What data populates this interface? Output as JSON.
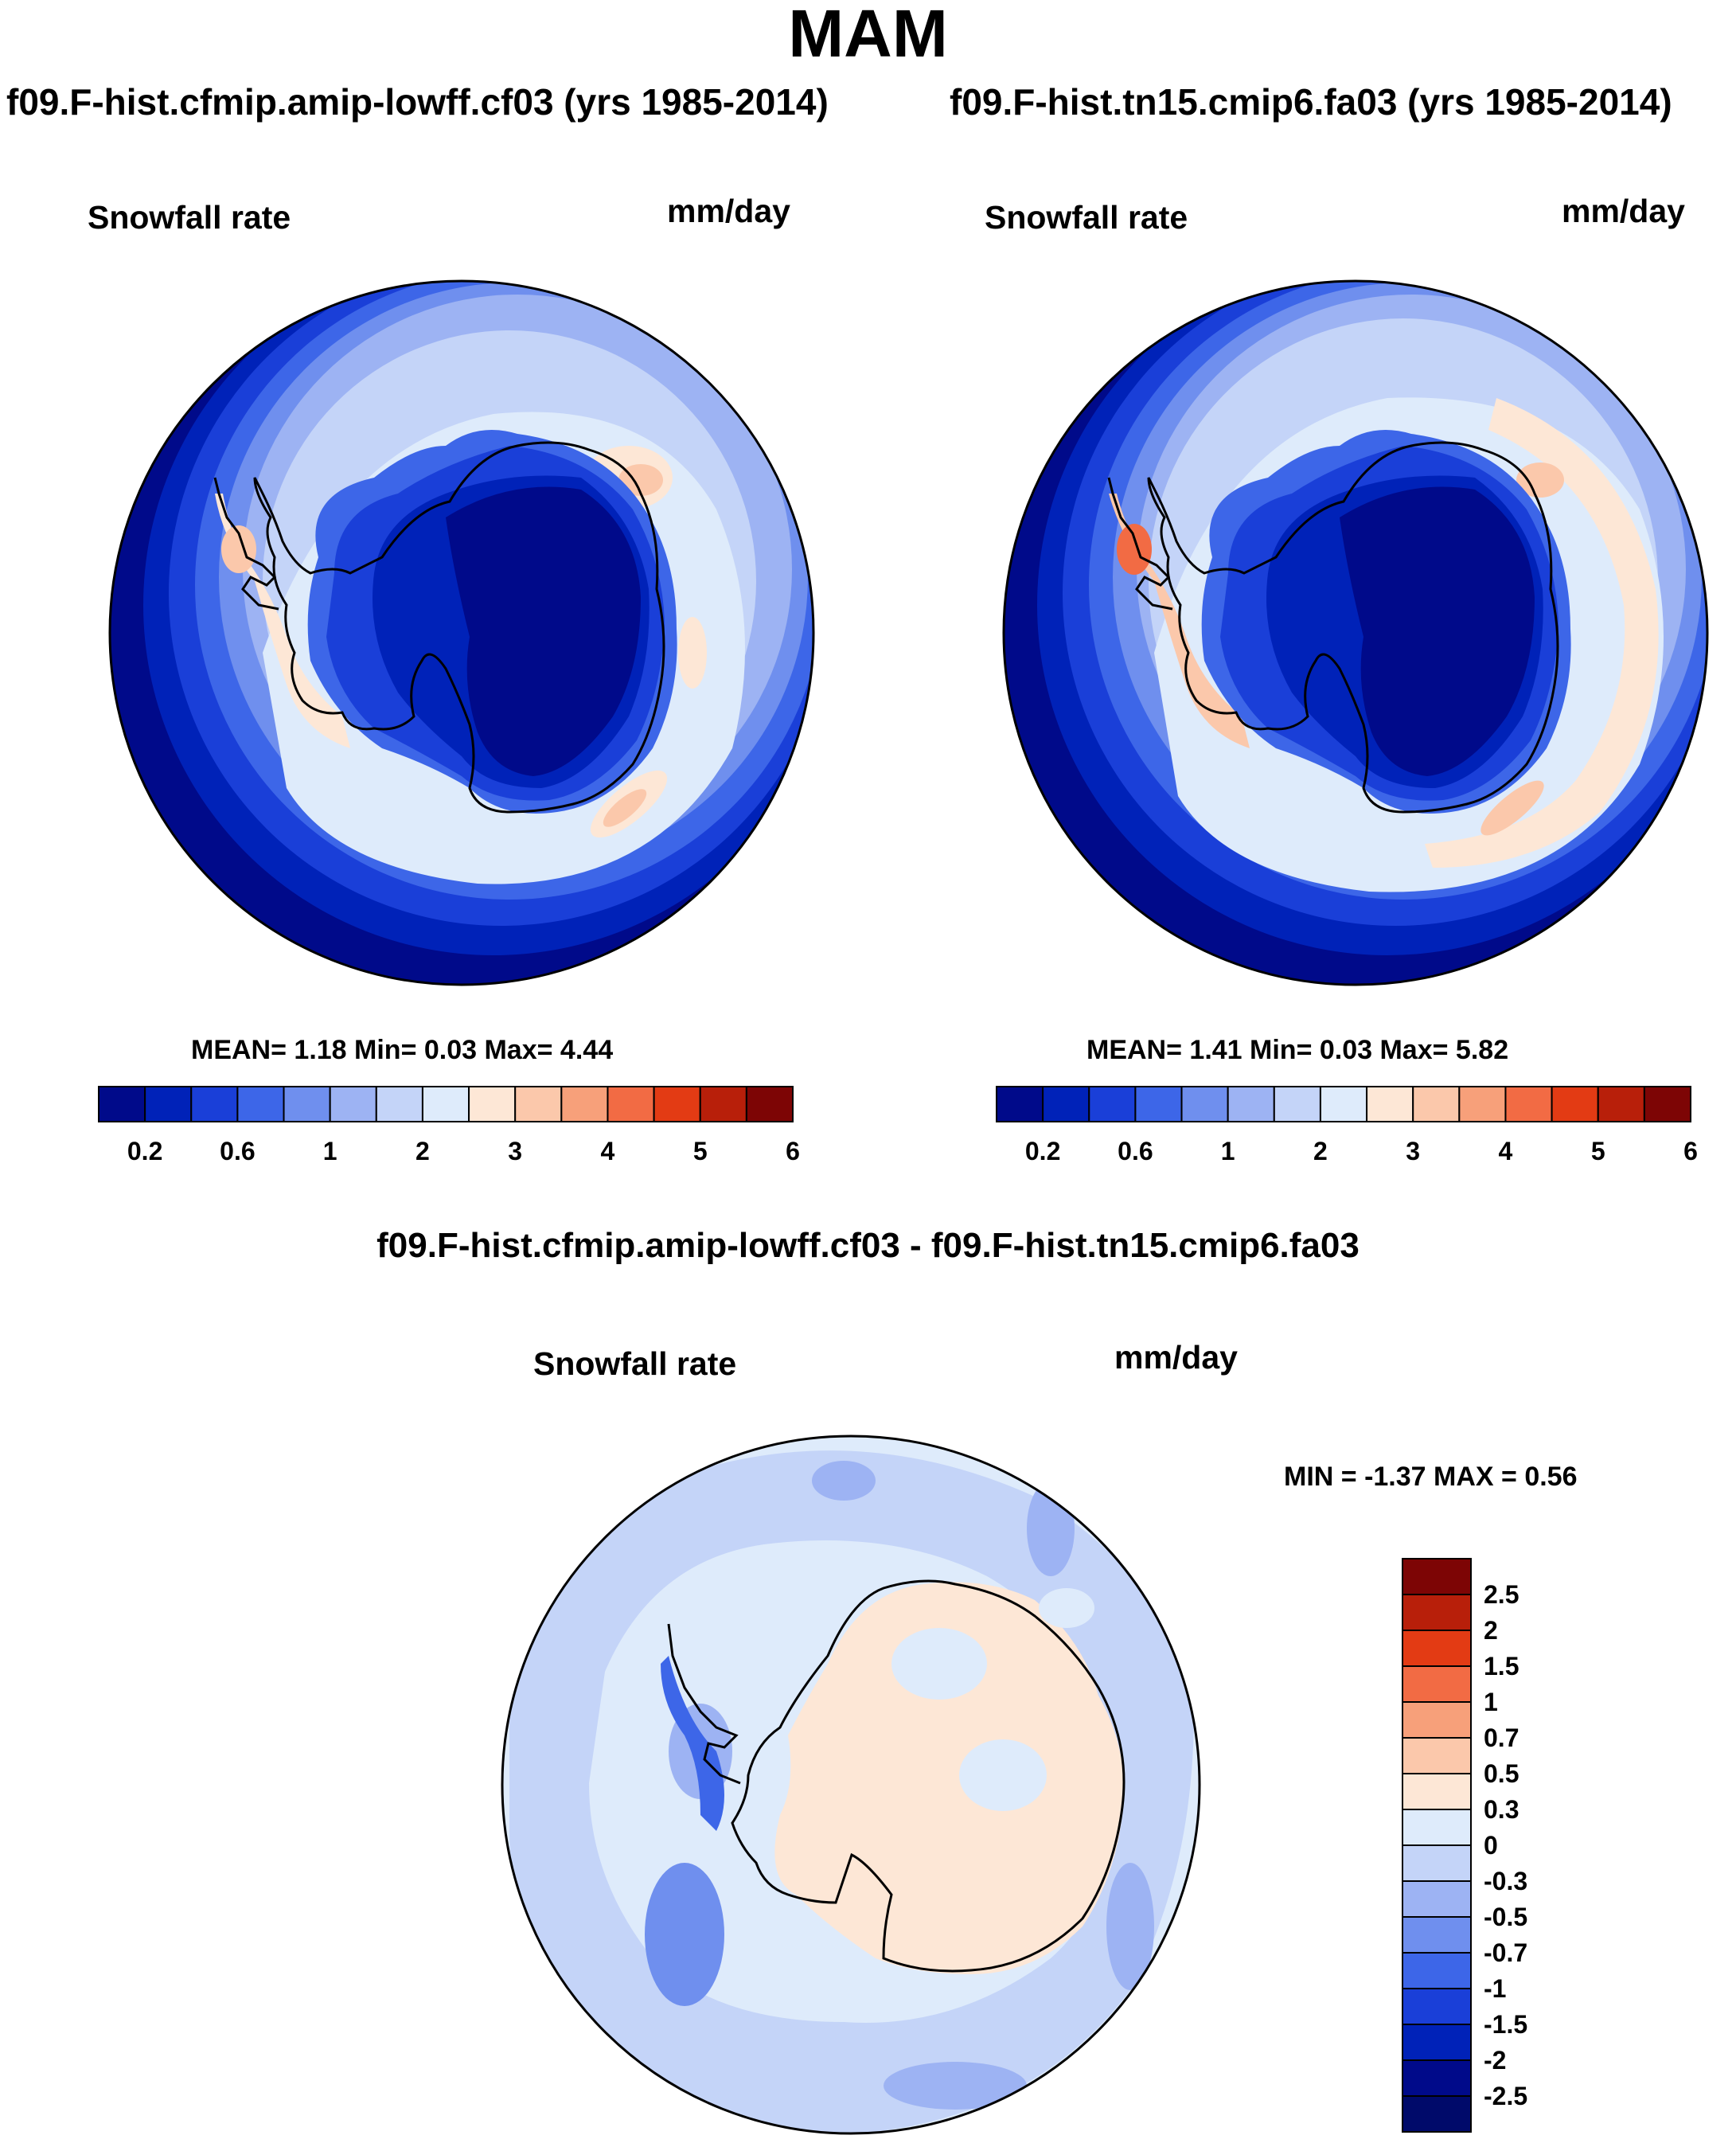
{
  "main_title": "MAM",
  "panel_a": {
    "run_title": "f09.F-hist.cfmip.amip-lowff.cf03 (yrs 1985-2014)",
    "variable": "Snowfall rate",
    "units": "mm/day",
    "stats": "MEAN=   1.18  Min=   0.03  Max=   4.44"
  },
  "panel_b": {
    "run_title": "f09.F-hist.tn15.cmip6.fa03 (yrs 1985-2014)",
    "variable": "Snowfall rate",
    "units": "mm/day",
    "stats": "MEAN=   1.41  Min=   0.03  Max=   5.82"
  },
  "panel_diff": {
    "title": "f09.F-hist.cfmip.amip-lowff.cf03 - f09.F-hist.tn15.cmip6.fa03",
    "variable": "Snowfall rate",
    "units": "mm/day",
    "stats": "MIN =  -1.37 MAX =   0.56"
  },
  "chart_data": [
    {
      "type": "heatmap",
      "projection": "south-polar-stereographic",
      "title": "f09.F-hist.cfmip.amip-lowff.cf03 (yrs 1985-2014)",
      "variable": "Snowfall rate",
      "units": "mm/day",
      "summary": {
        "mean": 1.18,
        "min": 0.03,
        "max": 4.44
      },
      "colorbar": {
        "orientation": "horizontal",
        "tick_labels": [
          "0.2",
          "0.6",
          "1",
          "2",
          "3",
          "4",
          "5",
          "6"
        ],
        "colors": [
          "#000a8a",
          "#0022b8",
          "#1a3fd8",
          "#3d66e8",
          "#6f8fee",
          "#9db3f3",
          "#c4d4f8",
          "#deebfb",
          "#fde7d6",
          "#fbc8ab",
          "#f7a07a",
          "#f26b44",
          "#e33b14",
          "#b81f0a",
          "#7d0505"
        ]
      }
    },
    {
      "type": "heatmap",
      "projection": "south-polar-stereographic",
      "title": "f09.F-hist.tn15.cmip6.fa03 (yrs 1985-2014)",
      "variable": "Snowfall rate",
      "units": "mm/day",
      "summary": {
        "mean": 1.41,
        "min": 0.03,
        "max": 5.82
      },
      "colorbar": {
        "orientation": "horizontal",
        "tick_labels": [
          "0.2",
          "0.6",
          "1",
          "2",
          "3",
          "4",
          "5",
          "6"
        ],
        "colors": [
          "#000a8a",
          "#0022b8",
          "#1a3fd8",
          "#3d66e8",
          "#6f8fee",
          "#9db3f3",
          "#c4d4f8",
          "#deebfb",
          "#fde7d6",
          "#fbc8ab",
          "#f7a07a",
          "#f26b44",
          "#e33b14",
          "#b81f0a",
          "#7d0505"
        ]
      }
    },
    {
      "type": "heatmap",
      "projection": "south-polar-stereographic",
      "title": "f09.F-hist.cfmip.amip-lowff.cf03 - f09.F-hist.tn15.cmip6.fa03",
      "variable": "Snowfall rate",
      "units": "mm/day",
      "summary": {
        "min": -1.37,
        "max": 0.56
      },
      "colorbar": {
        "orientation": "vertical",
        "tick_labels": [
          "2.5",
          "2",
          "1.5",
          "1",
          "0.7",
          "0.5",
          "0.3",
          "0",
          "-0.3",
          "-0.5",
          "-0.7",
          "-1",
          "-1.5",
          "-2",
          "-2.5"
        ],
        "colors": [
          "#7d0505",
          "#b81f0a",
          "#e33b14",
          "#f26b44",
          "#f7a07a",
          "#fbc8ab",
          "#fde7d6",
          "#deebfb",
          "#c4d4f8",
          "#9db3f3",
          "#6f8fee",
          "#3d66e8",
          "#1a3fd8",
          "#0022b8",
          "#000a8a",
          "#000a6a"
        ]
      }
    }
  ]
}
